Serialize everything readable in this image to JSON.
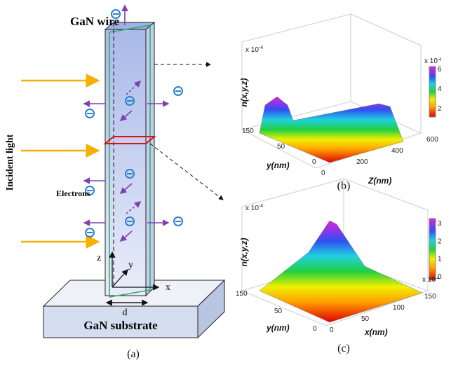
{
  "panel_a": {
    "title": "GaN wire",
    "side_label": "Incident light",
    "electrons_label": "Electrons",
    "substrate_label": "GaN substrate",
    "z_label": "z",
    "y_label": "y",
    "x_label": "x",
    "width_label": "d",
    "caption": "(a)"
  },
  "panel_b": {
    "vertical_label": "n(x,y,z)",
    "vertical_scale": "x 10",
    "vertical_scale_exponent": "-4",
    "depth_label": "y(nm)",
    "horizontal_label": "Z(nm)",
    "depth_ticks": [
      "150",
      "50",
      "0"
    ],
    "horizontal_ticks": [
      "0",
      "200",
      "400",
      "600"
    ],
    "colorbar_scale": "x 10",
    "colorbar_scale_exponent": "-4",
    "colorbar_ticks": [
      "6",
      "4",
      "2"
    ],
    "caption": "(b)"
  },
  "panel_c": {
    "vertical_label": "n(x,y,z)",
    "vertical_scale": "x 10",
    "vertical_scale_exponent": "-4",
    "depth_label": "y(nm)",
    "horizontal_label": "x(nm)",
    "depth_ticks": [
      "150",
      "50",
      "0"
    ],
    "horizontal_ticks": [
      "0",
      "50",
      "100",
      "150"
    ],
    "colorbar_scale": "x 10",
    "colorbar_scale_exponent": "-4",
    "colorbar_ticks": [
      "3",
      "2",
      "1",
      "0"
    ],
    "caption": "(c)"
  }
}
